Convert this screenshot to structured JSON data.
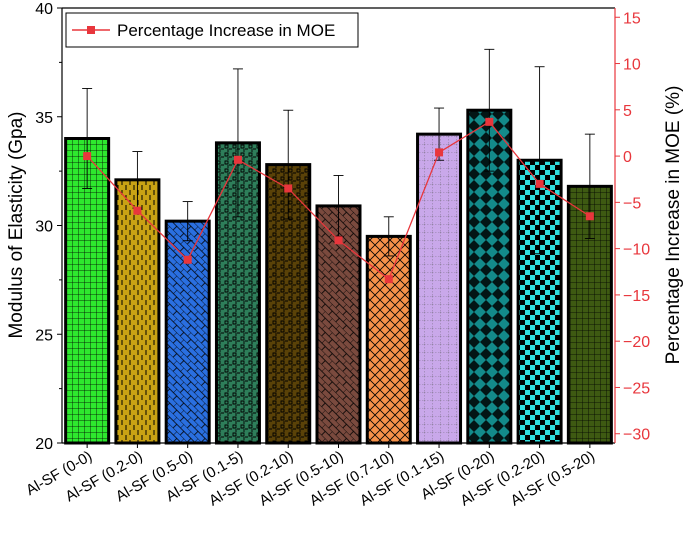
{
  "chart_data": {
    "type": "bar",
    "title": "",
    "xlabel": "",
    "ylabel": "Modulus of Elasticity (Gpa)",
    "ylabel_right": "Percentage Increase in MOE (%)",
    "ylim": [
      20,
      40
    ],
    "ylim_right": [
      -31,
      16
    ],
    "yticks": [
      20,
      25,
      30,
      35,
      40
    ],
    "yticks_right": [
      15,
      10,
      5,
      0,
      -5,
      -10,
      -15,
      -20,
      -25,
      -30
    ],
    "ytick_labels_right": [
      "15",
      "10",
      "5",
      "0",
      "−5",
      "−10",
      "−15",
      "−20",
      "−25",
      "−30"
    ],
    "categories": [
      "Al-SF (0-0)",
      "Al-SF (0.2-0)",
      "Al-SF (0.5-0)",
      "Al-SF (0.1-5)",
      "Al-SF (0.2-10)",
      "Al-SF (0.5-10)",
      "Al-SF (0.7-10)",
      "Al-SF (0.1-15)",
      "Al-SF (0-20)",
      "Al-SF (0.2-20)",
      "Al-SF (0.5-20)"
    ],
    "series": [
      {
        "name": "Modulus of Elasticity",
        "axis": "left",
        "type": "bar",
        "values": [
          34.0,
          32.1,
          30.2,
          33.8,
          32.8,
          30.9,
          29.5,
          34.2,
          35.3,
          33.0,
          31.8
        ],
        "errors": [
          2.3,
          1.3,
          0.9,
          3.4,
          2.5,
          1.4,
          0.9,
          1.2,
          2.8,
          4.3,
          2.4
        ],
        "colors": [
          "#2ee82e",
          "#c9a214",
          "#2a6fe0",
          "#2e7e5a",
          "#5a4208",
          "#7a4a3e",
          "#f5914a",
          "#c9a8ea",
          "#138a8a",
          "#2fdede",
          "#3e5a12"
        ],
        "patterns": [
          "grid",
          "dashes",
          "brick",
          "weave",
          "weave",
          "brick",
          "crosshatch",
          "dots",
          "diamonds",
          "checker",
          "grid"
        ]
      },
      {
        "name": "Percentage Increase in MOE",
        "axis": "right",
        "type": "line",
        "color": "#e8363c",
        "values": [
          0.0,
          -5.9,
          -11.2,
          -0.4,
          -3.5,
          -9.1,
          -13.3,
          0.4,
          3.7,
          -3.0,
          -6.5
        ]
      }
    ],
    "legend": {
      "position": "top-left",
      "entries": [
        "Percentage Increase in MOE"
      ]
    },
    "grid": false
  }
}
